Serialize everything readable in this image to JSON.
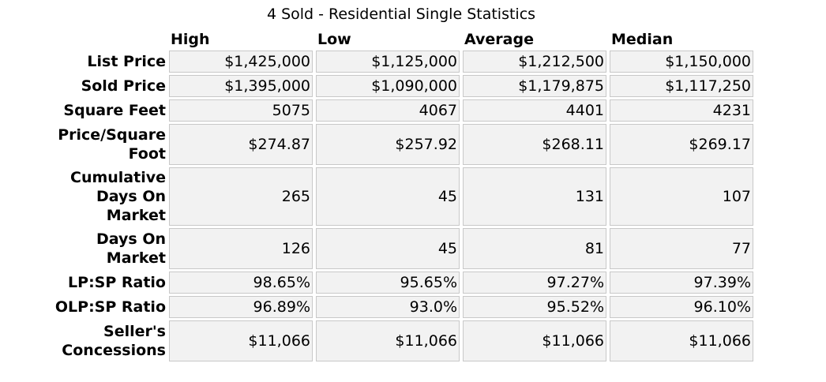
{
  "title": "4 Sold - Residential Single Statistics",
  "columns": [
    "High",
    "Low",
    "Average",
    "Median"
  ],
  "rows": [
    {
      "label": "List Price",
      "values": [
        "$1,425,000",
        "$1,125,000",
        "$1,212,500",
        "$1,150,000"
      ]
    },
    {
      "label": "Sold Price",
      "values": [
        "$1,395,000",
        "$1,090,000",
        "$1,179,875",
        "$1,117,250"
      ]
    },
    {
      "label": "Square Feet",
      "values": [
        "5075",
        "4067",
        "4401",
        "4231"
      ]
    },
    {
      "label": "Price/Square Foot",
      "values": [
        "$274.87",
        "$257.92",
        "$268.11",
        "$269.17"
      ]
    },
    {
      "label": "Cumulative Days On Market",
      "values": [
        "265",
        "45",
        "131",
        "107"
      ]
    },
    {
      "label": "Days On Market",
      "values": [
        "126",
        "45",
        "81",
        "77"
      ]
    },
    {
      "label": "LP:SP Ratio",
      "values": [
        "98.65%",
        "95.65%",
        "97.27%",
        "97.39%"
      ]
    },
    {
      "label": "OLP:SP Ratio",
      "values": [
        "96.89%",
        "93.0%",
        "95.52%",
        "96.10%"
      ]
    },
    {
      "label": "Seller's Concessions",
      "values": [
        "$11,066",
        "$11,066",
        "$11,066",
        "$11,066"
      ]
    }
  ]
}
